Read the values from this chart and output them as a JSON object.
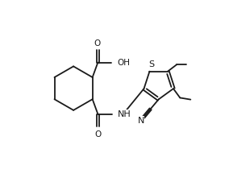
{
  "background_color": "#ffffff",
  "line_color": "#1a1a1a",
  "line_width": 1.3,
  "font_size": 7.5,
  "figsize": [
    2.84,
    2.32
  ],
  "dpi": 100,
  "xlim": [
    0,
    10
  ],
  "ylim": [
    0,
    8.2
  ]
}
